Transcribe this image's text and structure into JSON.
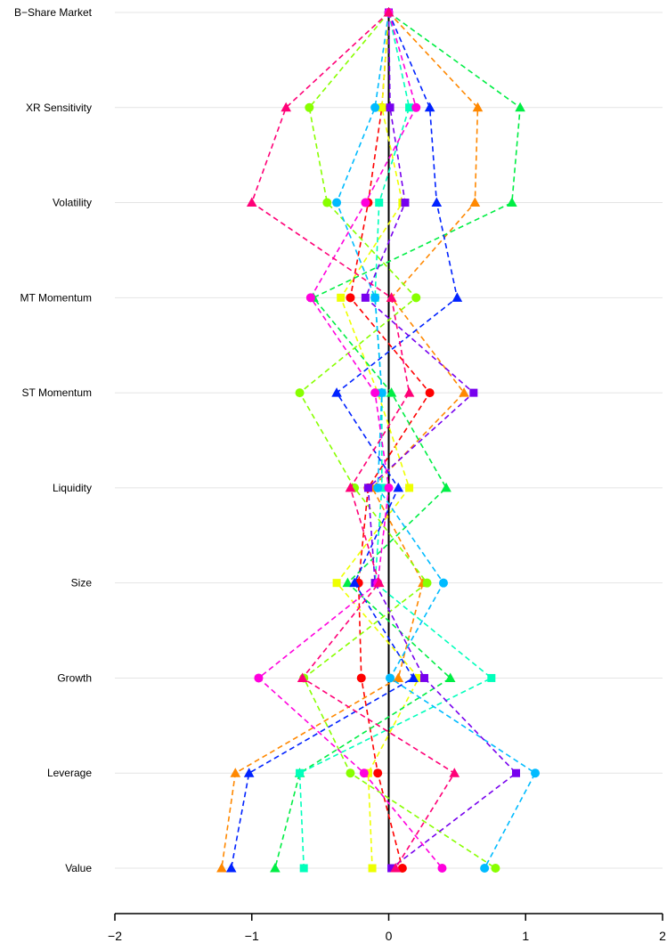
{
  "chart_data": {
    "type": "line",
    "orientation": "horizontal",
    "categories": [
      "B−Share Market",
      "XR Sensitivity",
      "Volatility",
      "MT Momentum",
      "ST Momentum",
      "Liquidity",
      "Size",
      "Growth",
      "Leverage",
      "Value"
    ],
    "xlim": [
      -2,
      2
    ],
    "x_ticks": [
      "−2",
      "−1",
      "0",
      "1",
      "2"
    ],
    "x_tick_values": [
      -2,
      -1,
      0,
      1,
      2
    ],
    "grid": "horizontal gridlines at each category",
    "reference_line": 0,
    "line_style": "dashed",
    "legend": "none",
    "series": [
      {
        "color": "#ff0000",
        "marker": "circle",
        "values": [
          0,
          -0.05,
          -0.15,
          -0.28,
          0.3,
          -0.15,
          -0.22,
          -0.2,
          -0.08,
          0.1
        ]
      },
      {
        "color": "#ff8800",
        "marker": "triangle",
        "values": [
          0,
          0.65,
          0.63,
          0.02,
          0.55,
          -0.12,
          0.25,
          0.07,
          -1.12,
          -1.22
        ]
      },
      {
        "color": "#eeff00",
        "marker": "square",
        "values": [
          0,
          -0.05,
          0.1,
          -0.35,
          -0.08,
          0.15,
          -0.38,
          0.22,
          -0.15,
          -0.12
        ]
      },
      {
        "color": "#88ff00",
        "marker": "circle",
        "values": [
          0,
          -0.58,
          -0.45,
          0.2,
          -0.65,
          -0.25,
          0.28,
          -0.62,
          -0.28,
          0.78
        ]
      },
      {
        "color": "#00ee44",
        "marker": "triangle",
        "values": [
          0,
          0.96,
          0.9,
          -0.55,
          0.02,
          0.42,
          -0.3,
          0.45,
          -0.65,
          -0.83
        ]
      },
      {
        "color": "#00ffbb",
        "marker": "square",
        "values": [
          0,
          0.15,
          -0.07,
          -0.1,
          -0.05,
          -0.05,
          -0.1,
          0.75,
          -0.65,
          -0.62
        ]
      },
      {
        "color": "#00bbff",
        "marker": "circle",
        "values": [
          0,
          -0.1,
          -0.38,
          -0.1,
          -0.05,
          -0.08,
          0.4,
          0.01,
          1.07,
          0.7
        ]
      },
      {
        "color": "#0022ff",
        "marker": "triangle",
        "values": [
          0,
          0.3,
          0.35,
          0.5,
          -0.38,
          0.07,
          -0.25,
          0.18,
          -1.02,
          -1.15
        ]
      },
      {
        "color": "#7700ee",
        "marker": "square",
        "values": [
          0,
          0.01,
          0.12,
          -0.17,
          0.62,
          -0.15,
          -0.1,
          0.26,
          0.93,
          0.02
        ]
      },
      {
        "color": "#ff00dd",
        "marker": "circle",
        "values": [
          0,
          0.2,
          -0.17,
          -0.57,
          -0.1,
          0.0,
          -0.08,
          -0.95,
          -0.18,
          0.39
        ]
      },
      {
        "color": "#ff0077",
        "marker": "triangle",
        "values": [
          0,
          -0.75,
          -1.0,
          0.02,
          0.15,
          -0.28,
          -0.07,
          -0.63,
          0.48,
          0.05
        ]
      }
    ]
  }
}
